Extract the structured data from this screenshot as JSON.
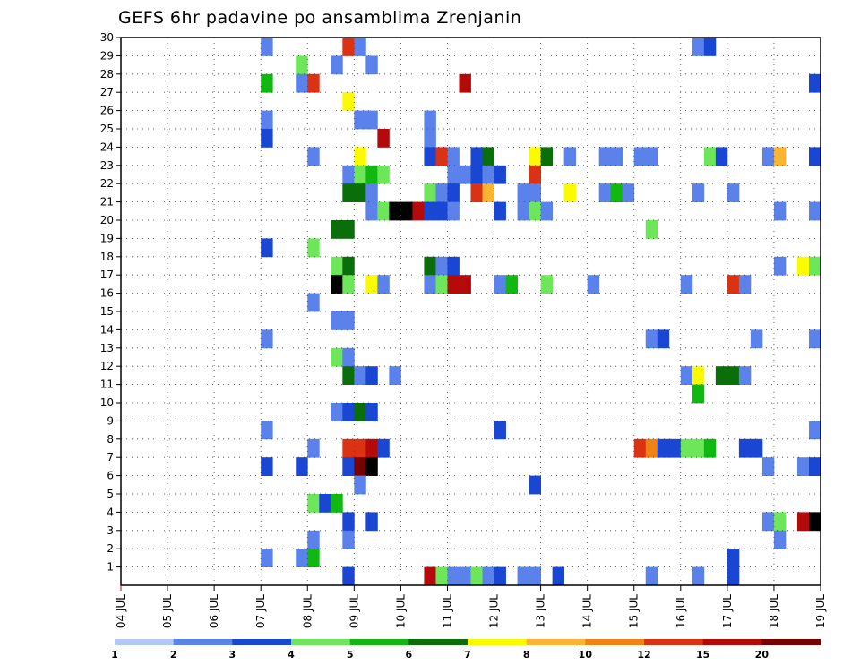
{
  "chart_data": {
    "type": "heatmap",
    "title": "GEFS 6hr padavine po ansamblima Zrenjanin",
    "xlabel": "",
    "ylabel": "",
    "x_ticks": [
      "04 JUL",
      "05 JUL",
      "06 JUL",
      "07 JUL",
      "08 JUL",
      "09 JUL",
      "10 JUL",
      "11 JUL",
      "12 JUL",
      "13 JUL",
      "14 JUL",
      "15 JUL",
      "16 JUL",
      "17 JUL",
      "18 JUL",
      "19 JUL"
    ],
    "y_ticks": [
      "1",
      "2",
      "3",
      "4",
      "5",
      "6",
      "7",
      "8",
      "9",
      "10",
      "11",
      "12",
      "13",
      "14",
      "15",
      "16",
      "17",
      "18",
      "19",
      "20",
      "21",
      "22",
      "23",
      "24",
      "25",
      "26",
      "27",
      "28",
      "29",
      "30"
    ],
    "xlim": [
      0,
      60
    ],
    "ylim": [
      0,
      30
    ],
    "grid": true,
    "legend": {
      "position": "bottom",
      "labels": [
        "1",
        "2",
        "3",
        "4",
        "5",
        "6",
        "7",
        "8",
        "10",
        "12",
        "15",
        "20"
      ],
      "colors": [
        "#b4c8f5",
        "#5a82ea",
        "#1a46d4",
        "#6ee65a",
        "#12b812",
        "#0a6e0a",
        "#fafa00",
        "#fab432",
        "#f08214",
        "#dc3214",
        "#b40a0a",
        "#780000"
      ]
    },
    "cells": [
      [
        12,
        30,
        1
      ],
      [
        19,
        30,
        9
      ],
      [
        20,
        30,
        1
      ],
      [
        49,
        30,
        1
      ],
      [
        50,
        30,
        2
      ],
      [
        15,
        29,
        3
      ],
      [
        18,
        29,
        1
      ],
      [
        21,
        29,
        1
      ],
      [
        12,
        28,
        4
      ],
      [
        15,
        28,
        1
      ],
      [
        16,
        28,
        9
      ],
      [
        29,
        28,
        10
      ],
      [
        59,
        28,
        2
      ],
      [
        19,
        27,
        6
      ],
      [
        12,
        26,
        1
      ],
      [
        20,
        26,
        1
      ],
      [
        21,
        26,
        1
      ],
      [
        26,
        26,
        1
      ],
      [
        12,
        25,
        2
      ],
      [
        22,
        25,
        10
      ],
      [
        26,
        25,
        1
      ],
      [
        16,
        24,
        1
      ],
      [
        20,
        24,
        6
      ],
      [
        26,
        24,
        2
      ],
      [
        27,
        24,
        9
      ],
      [
        28,
        24,
        1
      ],
      [
        30,
        24,
        2
      ],
      [
        31,
        24,
        5
      ],
      [
        35,
        24,
        6
      ],
      [
        36,
        24,
        5
      ],
      [
        38,
        24,
        1
      ],
      [
        41,
        24,
        1
      ],
      [
        42,
        24,
        1
      ],
      [
        44,
        24,
        1
      ],
      [
        45,
        24,
        1
      ],
      [
        50,
        24,
        3
      ],
      [
        51,
        24,
        2
      ],
      [
        55,
        24,
        1
      ],
      [
        56,
        24,
        7
      ],
      [
        59,
        24,
        2
      ],
      [
        19,
        23,
        1
      ],
      [
        20,
        23,
        3
      ],
      [
        21,
        23,
        4
      ],
      [
        22,
        23,
        3
      ],
      [
        28,
        23,
        1
      ],
      [
        29,
        23,
        1
      ],
      [
        30,
        23,
        2
      ],
      [
        31,
        23,
        1
      ],
      [
        32,
        23,
        2
      ],
      [
        35,
        23,
        9
      ],
      [
        19,
        22,
        5
      ],
      [
        20,
        22,
        5
      ],
      [
        21,
        22,
        1
      ],
      [
        26,
        22,
        3
      ],
      [
        27,
        22,
        1
      ],
      [
        28,
        22,
        2
      ],
      [
        30,
        22,
        9
      ],
      [
        31,
        22,
        7
      ],
      [
        34,
        22,
        1
      ],
      [
        35,
        22,
        1
      ],
      [
        38,
        22,
        6
      ],
      [
        41,
        22,
        1
      ],
      [
        42,
        22,
        4
      ],
      [
        43,
        22,
        1
      ],
      [
        49,
        22,
        1
      ],
      [
        52,
        22,
        1
      ],
      [
        21,
        21,
        1
      ],
      [
        22,
        21,
        3
      ],
      [
        23,
        21,
        12
      ],
      [
        24,
        21,
        12
      ],
      [
        25,
        21,
        10
      ],
      [
        26,
        21,
        2
      ],
      [
        27,
        21,
        2
      ],
      [
        28,
        21,
        1
      ],
      [
        32,
        21,
        2
      ],
      [
        34,
        21,
        1
      ],
      [
        35,
        21,
        3
      ],
      [
        36,
        21,
        1
      ],
      [
        56,
        21,
        1
      ],
      [
        59,
        21,
        1
      ],
      [
        18,
        20,
        5
      ],
      [
        19,
        20,
        5
      ],
      [
        45,
        20,
        3
      ],
      [
        12,
        19,
        2
      ],
      [
        16,
        19,
        3
      ],
      [
        18,
        18,
        3
      ],
      [
        19,
        18,
        5
      ],
      [
        26,
        18,
        5
      ],
      [
        27,
        18,
        1
      ],
      [
        28,
        18,
        2
      ],
      [
        56,
        18,
        1
      ],
      [
        58,
        18,
        6
      ],
      [
        59,
        18,
        3
      ],
      [
        18,
        17,
        12
      ],
      [
        19,
        17,
        3
      ],
      [
        21,
        17,
        6
      ],
      [
        22,
        17,
        1
      ],
      [
        26,
        17,
        1
      ],
      [
        27,
        17,
        3
      ],
      [
        28,
        17,
        10
      ],
      [
        29,
        17,
        10
      ],
      [
        32,
        17,
        1
      ],
      [
        33,
        17,
        4
      ],
      [
        36,
        17,
        3
      ],
      [
        40,
        17,
        1
      ],
      [
        48,
        17,
        1
      ],
      [
        52,
        17,
        9
      ],
      [
        53,
        17,
        1
      ],
      [
        16,
        16,
        1
      ],
      [
        18,
        15,
        1
      ],
      [
        19,
        15,
        1
      ],
      [
        12,
        14,
        1
      ],
      [
        45,
        14,
        1
      ],
      [
        46,
        14,
        2
      ],
      [
        54,
        14,
        1
      ],
      [
        59,
        14,
        1
      ],
      [
        18,
        13,
        3
      ],
      [
        19,
        13,
        1
      ],
      [
        19,
        12,
        5
      ],
      [
        20,
        12,
        1
      ],
      [
        21,
        12,
        2
      ],
      [
        23,
        12,
        1
      ],
      [
        48,
        12,
        1
      ],
      [
        49,
        12,
        6
      ],
      [
        51,
        12,
        5
      ],
      [
        52,
        12,
        5
      ],
      [
        53,
        12,
        1
      ],
      [
        49,
        11,
        4
      ],
      [
        18,
        10,
        1
      ],
      [
        19,
        10,
        2
      ],
      [
        20,
        10,
        5
      ],
      [
        21,
        10,
        2
      ],
      [
        12,
        9,
        1
      ],
      [
        32,
        9,
        2
      ],
      [
        59,
        9,
        1
      ],
      [
        16,
        8,
        1
      ],
      [
        19,
        8,
        9
      ],
      [
        20,
        8,
        9
      ],
      [
        21,
        8,
        10
      ],
      [
        22,
        8,
        2
      ],
      [
        44,
        8,
        9
      ],
      [
        45,
        8,
        8
      ],
      [
        46,
        8,
        2
      ],
      [
        47,
        8,
        2
      ],
      [
        48,
        8,
        3
      ],
      [
        49,
        8,
        3
      ],
      [
        50,
        8,
        4
      ],
      [
        53,
        8,
        2
      ],
      [
        54,
        8,
        2
      ],
      [
        12,
        7,
        2
      ],
      [
        15,
        7,
        2
      ],
      [
        19,
        7,
        2
      ],
      [
        20,
        7,
        11
      ],
      [
        21,
        7,
        12
      ],
      [
        55,
        7,
        1
      ],
      [
        58,
        7,
        1
      ],
      [
        59,
        7,
        2
      ],
      [
        20,
        6,
        1
      ],
      [
        35,
        6,
        2
      ],
      [
        16,
        5,
        3
      ],
      [
        17,
        5,
        2
      ],
      [
        18,
        5,
        4
      ],
      [
        19,
        4,
        2
      ],
      [
        21,
        4,
        2
      ],
      [
        55,
        4,
        1
      ],
      [
        56,
        4,
        3
      ],
      [
        58,
        4,
        10
      ],
      [
        59,
        4,
        12
      ],
      [
        16,
        3,
        1
      ],
      [
        19,
        3,
        1
      ],
      [
        56,
        3,
        1
      ],
      [
        12,
        2,
        1
      ],
      [
        15,
        2,
        1
      ],
      [
        16,
        2,
        4
      ],
      [
        52,
        2,
        2
      ],
      [
        19,
        1,
        2
      ],
      [
        26,
        1,
        10
      ],
      [
        27,
        1,
        3
      ],
      [
        28,
        1,
        1
      ],
      [
        29,
        1,
        1
      ],
      [
        30,
        1,
        3
      ],
      [
        31,
        1,
        1
      ],
      [
        32,
        1,
        2
      ],
      [
        34,
        1,
        1
      ],
      [
        35,
        1,
        1
      ],
      [
        37,
        1,
        2
      ],
      [
        45,
        1,
        1
      ],
      [
        49,
        1,
        1
      ],
      [
        52,
        1,
        2
      ]
    ]
  }
}
